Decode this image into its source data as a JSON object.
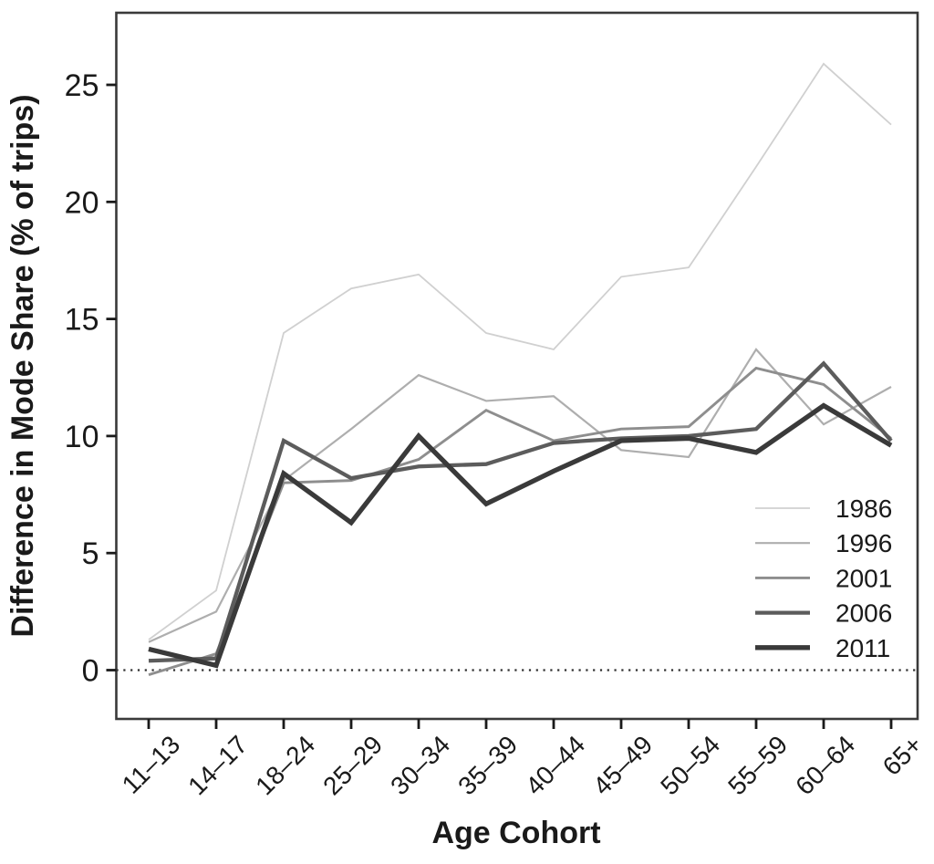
{
  "chart_data": {
    "type": "line",
    "title": "",
    "xlabel": "Age Cohort",
    "ylabel": "Difference in Mode Share (% of trips)",
    "categories": [
      "11–13",
      "14–17",
      "18–24",
      "25–29",
      "30–34",
      "35–39",
      "40–44",
      "45–49",
      "50–54",
      "55–59",
      "60–64",
      "65+"
    ],
    "series": [
      {
        "name": "1986",
        "color": "#d0d0d0",
        "stroke_width": 1.8,
        "values": [
          1.3,
          3.4,
          14.4,
          16.3,
          16.9,
          14.4,
          13.7,
          16.8,
          17.2,
          21.5,
          25.9,
          23.3
        ]
      },
      {
        "name": "1996",
        "color": "#aeaeae",
        "stroke_width": 2.2,
        "values": [
          1.2,
          2.5,
          8.1,
          10.3,
          12.6,
          11.5,
          11.7,
          9.4,
          9.1,
          13.7,
          10.5,
          12.1
        ]
      },
      {
        "name": "2001",
        "color": "#8e8e8e",
        "stroke_width": 2.9,
        "values": [
          -0.2,
          0.7,
          8.0,
          8.1,
          9.0,
          11.1,
          9.8,
          10.3,
          10.4,
          12.9,
          12.2,
          9.9
        ]
      },
      {
        "name": "2006",
        "color": "#5c5c5c",
        "stroke_width": 4.3,
        "values": [
          0.4,
          0.5,
          9.8,
          8.2,
          8.7,
          8.8,
          9.7,
          9.9,
          10.0,
          10.3,
          13.1,
          9.8
        ]
      },
      {
        "name": "2011",
        "color": "#3a3a3a",
        "stroke_width": 5.3,
        "values": [
          0.9,
          0.2,
          8.4,
          6.3,
          10.0,
          7.1,
          8.5,
          9.8,
          9.9,
          9.3,
          11.3,
          9.6
        ]
      }
    ],
    "y_ticks": [
      0,
      5,
      10,
      15,
      20,
      25
    ],
    "ylim": [
      -2.1,
      28.1
    ],
    "grid": false,
    "zero_line": {
      "value": 0,
      "style": "dotted",
      "color": "#2e2e2e"
    },
    "legend_position": "inside-right",
    "axis_color": "#3a3a3a",
    "tick_color": "#1a1a1a",
    "background": "#ffffff"
  }
}
